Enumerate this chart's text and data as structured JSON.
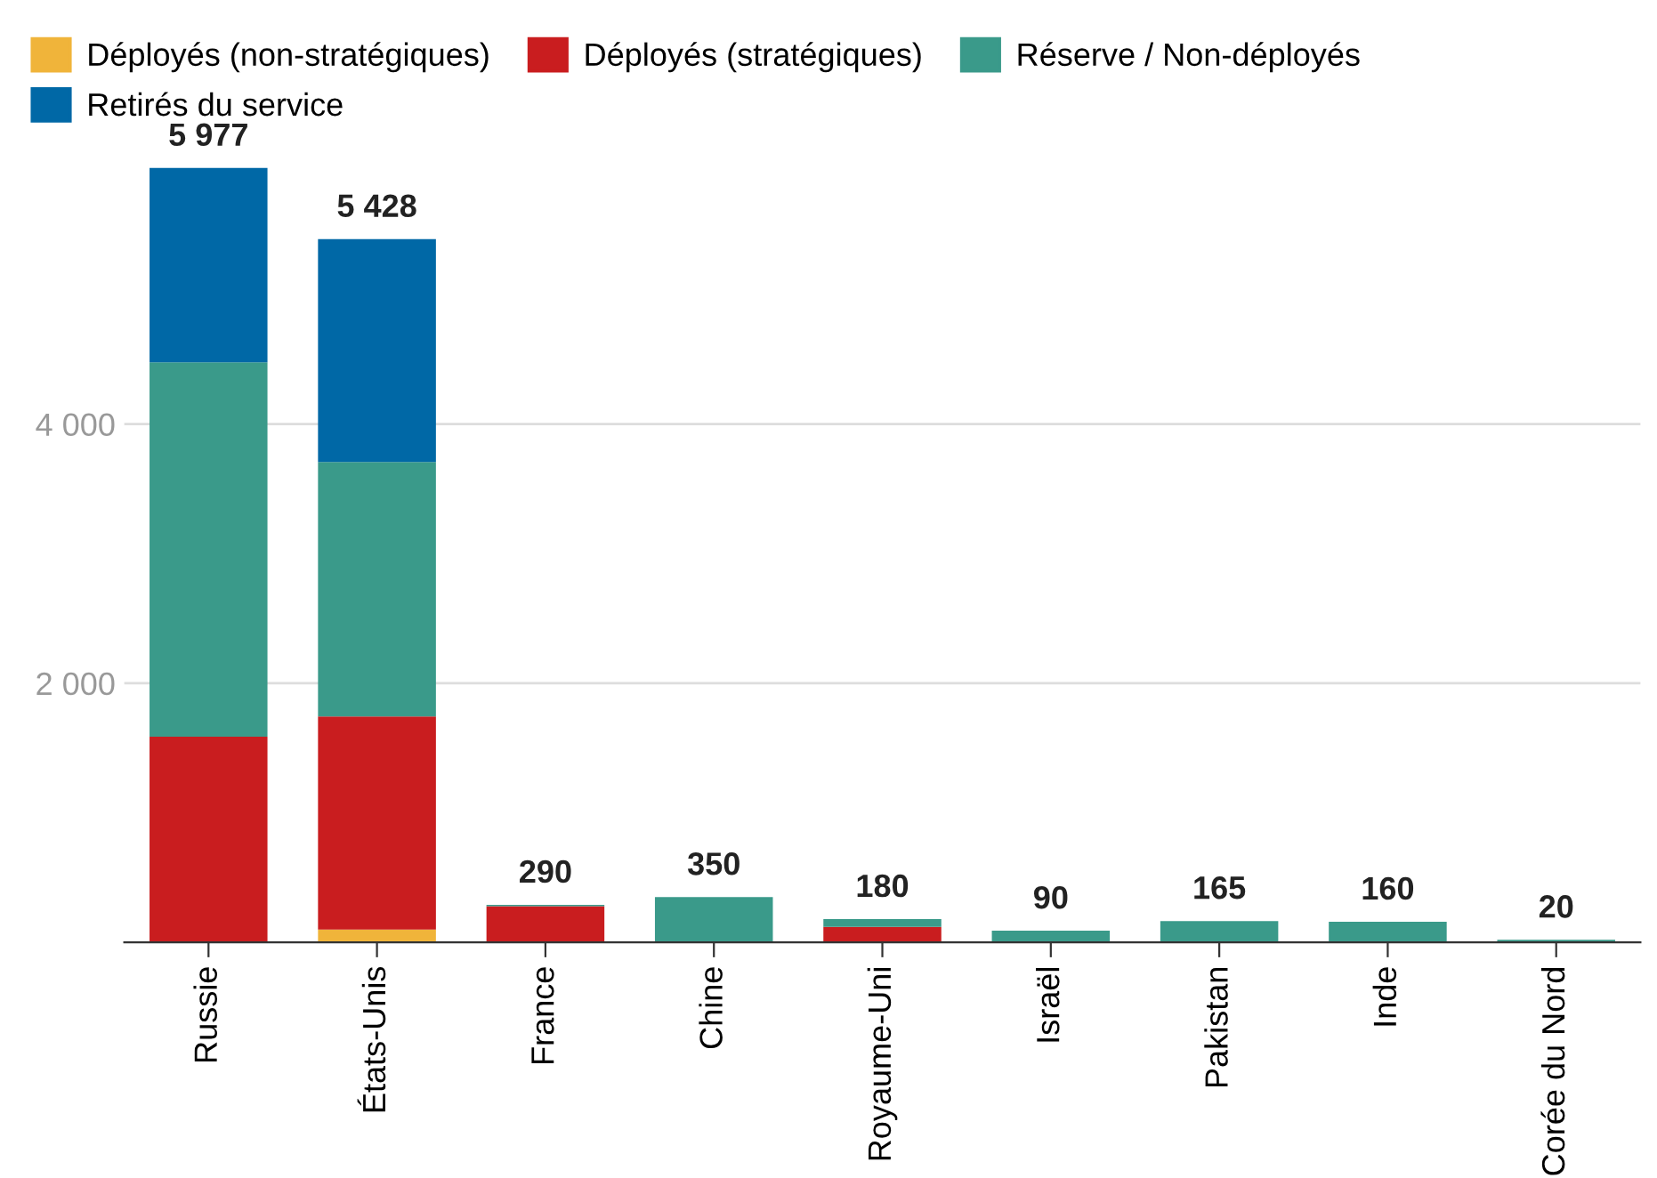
{
  "chart_data": {
    "type": "bar",
    "stacked": true,
    "categories": [
      "Russie",
      "États-Unis",
      "France",
      "Chine",
      "Royaume-Uni",
      "Israël",
      "Pakistan",
      "Inde",
      "Corée du Nord"
    ],
    "series": [
      {
        "name": "Déployés (non-stratégiques)",
        "color": "#f0b43a",
        "values": [
          0,
          100,
          0,
          0,
          0,
          0,
          0,
          0,
          0
        ]
      },
      {
        "name": "Déployés (stratégiques)",
        "color": "#c91d1f",
        "values": [
          1588,
          1644,
          280,
          0,
          120,
          0,
          0,
          0,
          0
        ]
      },
      {
        "name": "Réserve / Non-déployés",
        "color": "#3a9a8a",
        "values": [
          2889,
          1964,
          10,
          350,
          60,
          90,
          165,
          160,
          20
        ]
      },
      {
        "name": "Retirés du service",
        "color": "#0068a6",
        "values": [
          1500,
          1720,
          0,
          0,
          0,
          0,
          0,
          0,
          0
        ]
      }
    ],
    "totals": [
      "5 977",
      "5 428",
      "290",
      "350",
      "180",
      "90",
      "165",
      "160",
      "20"
    ],
    "ylim": [
      0,
      6000
    ],
    "yticks": [
      {
        "value": 0,
        "label": null
      },
      {
        "value": 2000,
        "label": "2 000"
      },
      {
        "value": 4000,
        "label": "4 000"
      }
    ],
    "grid": "y",
    "legend": "top left"
  }
}
